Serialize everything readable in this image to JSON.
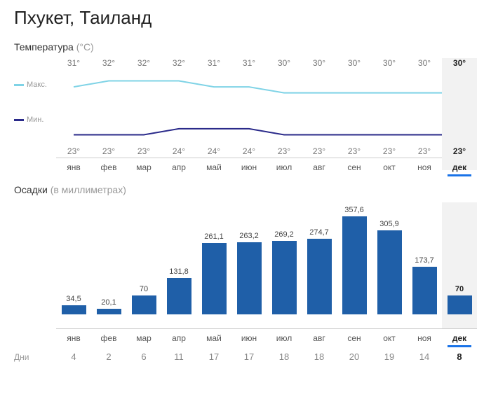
{
  "title": "Пхукет, Таиланд",
  "temperature": {
    "section_label": "Температура",
    "unit": "(°C)",
    "legend_max": "Макс.",
    "legend_min": "Мин.",
    "max_color": "#7fd3e6",
    "min_color": "#2a2a8a",
    "months": [
      "янв",
      "фев",
      "мар",
      "апр",
      "май",
      "июн",
      "июл",
      "авг",
      "сен",
      "окт",
      "ноя",
      "дек"
    ],
    "max_values": [
      31,
      32,
      32,
      32,
      31,
      31,
      30,
      30,
      30,
      30,
      30,
      30
    ],
    "max_labels": [
      "31°",
      "32°",
      "32°",
      "32°",
      "31°",
      "31°",
      "30°",
      "30°",
      "30°",
      "30°",
      "30°",
      "30°"
    ],
    "min_values": [
      23,
      23,
      23,
      24,
      24,
      24,
      23,
      23,
      23,
      23,
      23,
      23
    ],
    "min_labels": [
      "23°",
      "23°",
      "23°",
      "24°",
      "24°",
      "24°",
      "23°",
      "23°",
      "23°",
      "23°",
      "23°",
      "23°"
    ],
    "selected_index": 11,
    "label_fontsize": 12,
    "line_width": 2
  },
  "precipitation": {
    "section_label": "Осадки",
    "unit": "(в миллиметрах)",
    "values": [
      34.5,
      20.1,
      70,
      131.8,
      261.1,
      263.2,
      269.2,
      274.7,
      357.6,
      305.9,
      173.7,
      70
    ],
    "value_labels": [
      "34,5",
      "20,1",
      "70",
      "131,8",
      "261,1",
      "263,2",
      "269,2",
      "274,7",
      "357,6",
      "305,9",
      "173,7",
      "70"
    ],
    "bar_color": "#1f5fa8",
    "max_value": 357.6,
    "selected_index": 11,
    "label_fontsize": 11
  },
  "days": {
    "label": "Дни",
    "values": [
      4,
      2,
      6,
      11,
      17,
      17,
      18,
      18,
      20,
      19,
      14,
      8
    ],
    "selected_index": 11
  },
  "colors": {
    "highlight_bg": "#f2f2f2",
    "axis_color": "#cccccc",
    "selected_underline": "#1a73e8",
    "text_muted": "#999999"
  }
}
